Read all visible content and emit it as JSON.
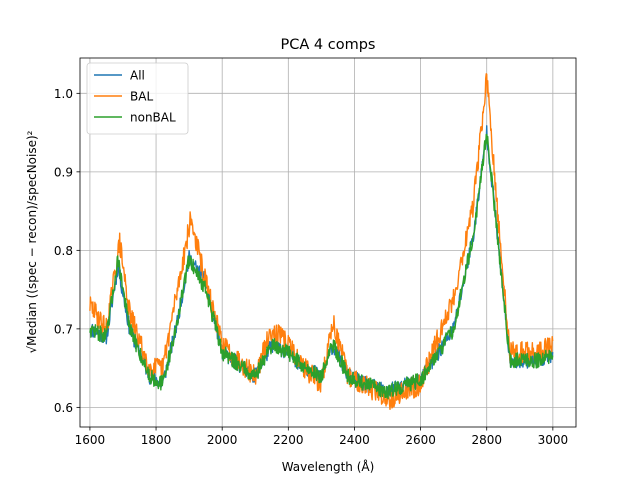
{
  "chart_data": {
    "type": "line",
    "title": "PCA 4 comps",
    "xlabel": "Wavelength (Å)",
    "ylabel": "√Median ((spec − recon)/specNoise)²",
    "xlim": [
      1570,
      3070
    ],
    "ylim": [
      0.575,
      1.045
    ],
    "xticks": [
      1600,
      1800,
      2000,
      2200,
      2400,
      2600,
      2800,
      3000
    ],
    "yticks": [
      0.6,
      0.7,
      0.8,
      0.9,
      1.0
    ],
    "grid": true,
    "legend_position": "upper-left",
    "series": [
      {
        "name": "All",
        "color": "#1f77b4",
        "x": [
          1600,
          1650,
          1685,
          1720,
          1780,
          1820,
          1860,
          1900,
          1950,
          2000,
          2100,
          2150,
          2200,
          2250,
          2300,
          2335,
          2380,
          2430,
          2500,
          2600,
          2700,
          2760,
          2800,
          2830,
          2870,
          2950,
          3000
        ],
        "y": [
          0.7,
          0.69,
          0.78,
          0.7,
          0.64,
          0.63,
          0.7,
          0.79,
          0.76,
          0.67,
          0.64,
          0.68,
          0.67,
          0.65,
          0.64,
          0.68,
          0.64,
          0.63,
          0.62,
          0.635,
          0.7,
          0.82,
          0.95,
          0.83,
          0.66,
          0.66,
          0.665
        ]
      },
      {
        "name": "BAL",
        "color": "#ff7f0e",
        "x": [
          1600,
          1650,
          1690,
          1720,
          1780,
          1820,
          1860,
          1905,
          1950,
          2000,
          2100,
          2150,
          2200,
          2250,
          2300,
          2335,
          2380,
          2430,
          2500,
          2600,
          2700,
          2760,
          2800,
          2830,
          2870,
          2950,
          3000
        ],
        "y": [
          0.73,
          0.7,
          0.81,
          0.72,
          0.65,
          0.65,
          0.74,
          0.84,
          0.76,
          0.68,
          0.64,
          0.7,
          0.68,
          0.65,
          0.63,
          0.71,
          0.64,
          0.63,
          0.61,
          0.63,
          0.74,
          0.86,
          1.02,
          0.86,
          0.67,
          0.67,
          0.68
        ]
      },
      {
        "name": "nonBAL",
        "color": "#2ca02c",
        "x": [
          1600,
          1650,
          1685,
          1720,
          1780,
          1820,
          1860,
          1900,
          1950,
          2000,
          2100,
          2150,
          2200,
          2250,
          2300,
          2335,
          2380,
          2430,
          2500,
          2600,
          2700,
          2760,
          2800,
          2830,
          2870,
          2950,
          3000
        ],
        "y": [
          0.7,
          0.69,
          0.79,
          0.7,
          0.64,
          0.63,
          0.7,
          0.79,
          0.75,
          0.67,
          0.64,
          0.68,
          0.67,
          0.65,
          0.64,
          0.68,
          0.64,
          0.63,
          0.62,
          0.635,
          0.7,
          0.82,
          0.95,
          0.83,
          0.66,
          0.66,
          0.665
        ]
      }
    ]
  }
}
